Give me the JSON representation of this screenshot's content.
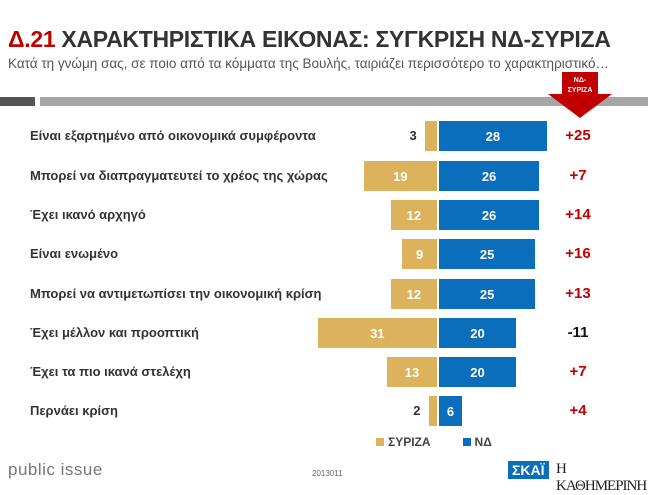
{
  "header": {
    "title_number": "Δ.21",
    "title_text": "ΧΑΡΑΚΤΗΡΙΣΤΙΚΑ ΕΙΚΟΝΑΣ: ΣΥΓΚΡΙΣΗ ΝΔ-ΣΥΡΙΖΑ",
    "subtitle": "Κατά τη γνώμη σας, σε ποιο από τα κόμματα της Βουλής, ταιριάζει περισσότερο το χαρακτηριστικό…",
    "arrow_label_1": "ΝΔ-",
    "arrow_label_2": "ΣΥΡΙΖΑ"
  },
  "chart_data": {
    "type": "bar",
    "orientation": "horizontal-diverging",
    "categories": [
      "Είναι εξαρτημένο από οικονομικά συμφέροντα",
      "Μπορεί να διαπραγματευτεί το χρέος της χώρας",
      "Έχει ικανό αρχηγό",
      "Είναι ενωμένο",
      "Μπορεί να αντιμετωπίσει την οικονομική κρίση",
      "Έχει μέλλον και προοπτική",
      "Έχει τα πιο ικανά στελέχη",
      "Περνάει κρίση"
    ],
    "series": [
      {
        "name": "ΣΥΡΙΖΑ",
        "color": "#dcb35c",
        "values": [
          3,
          19,
          12,
          9,
          12,
          31,
          13,
          2
        ]
      },
      {
        "name": "ΝΔ",
        "color": "#0a6ebd",
        "values": [
          28,
          26,
          26,
          25,
          25,
          20,
          20,
          6
        ]
      }
    ],
    "differences": [
      "+25",
      "+7",
      "+14",
      "+16",
      "+13",
      "-11",
      "+7",
      "+4"
    ],
    "legend": "bottom"
  },
  "footer": {
    "brand": "public issue",
    "code": "2013011",
    "logo1": "ΣΚΑΪ",
    "logo2": "Η ΚΑΘΗΜΕΡΙΝΗ"
  }
}
